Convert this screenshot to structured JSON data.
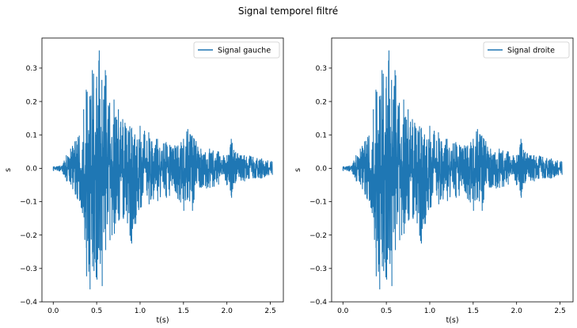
{
  "figure": {
    "suptitle": "Signal temporel filtré"
  },
  "chart_data": [
    {
      "type": "line",
      "xlabel": "t(s)",
      "ylabel": "s",
      "xlim": [
        -0.13,
        2.65
      ],
      "ylim": [
        -0.4,
        0.39
      ],
      "xticks": [
        0.0,
        0.5,
        1.0,
        1.5,
        2.0,
        2.5
      ],
      "xtick_labels": [
        "0.0",
        "0.5",
        "1.0",
        "1.5",
        "2.0",
        "2.5"
      ],
      "yticks": [
        -0.4,
        -0.3,
        -0.2,
        -0.1,
        0.0,
        0.1,
        0.2,
        0.3
      ],
      "ytick_labels": [
        "−0.4",
        "−0.3",
        "−0.2",
        "−0.1",
        "0.0",
        "0.1",
        "0.2",
        "0.3"
      ],
      "legend": {
        "position": "upper right"
      },
      "series": [
        {
          "name": "Signal gauche",
          "color": "#1f77b4",
          "envelope": {
            "t": [
              0.0,
              0.1,
              0.15,
              0.2,
              0.25,
              0.3,
              0.35,
              0.38,
              0.42,
              0.45,
              0.5,
              0.53,
              0.56,
              0.6,
              0.65,
              0.7,
              0.75,
              0.8,
              0.9,
              1.0,
              1.1,
              1.2,
              1.3,
              1.4,
              1.5,
              1.55,
              1.6,
              1.7,
              1.8,
              1.9,
              2.0,
              2.05,
              2.1,
              2.2,
              2.3,
              2.4,
              2.52
            ],
            "upper": [
              0.005,
              0.008,
              0.04,
              0.06,
              0.08,
              0.1,
              0.18,
              0.24,
              0.22,
              0.3,
              0.28,
              0.36,
              0.27,
              0.3,
              0.2,
              0.21,
              0.18,
              0.15,
              0.12,
              0.13,
              0.11,
              0.09,
              0.08,
              0.07,
              0.09,
              0.12,
              0.1,
              0.06,
              0.06,
              0.05,
              0.04,
              0.09,
              0.05,
              0.04,
              0.035,
              0.03,
              0.02
            ],
            "lower": [
              -0.008,
              -0.01,
              -0.04,
              -0.05,
              -0.08,
              -0.1,
              -0.15,
              -0.33,
              -0.37,
              -0.3,
              -0.34,
              -0.25,
              -0.36,
              -0.25,
              -0.22,
              -0.2,
              -0.16,
              -0.15,
              -0.23,
              -0.12,
              -0.11,
              -0.1,
              -0.09,
              -0.07,
              -0.13,
              -0.09,
              -0.13,
              -0.06,
              -0.06,
              -0.05,
              -0.05,
              -0.09,
              -0.04,
              -0.04,
              -0.03,
              -0.03,
              -0.02
            ]
          }
        }
      ]
    },
    {
      "type": "line",
      "xlabel": "t(s)",
      "ylabel": "s",
      "xlim": [
        -0.13,
        2.65
      ],
      "ylim": [
        -0.4,
        0.39
      ],
      "xticks": [
        0.0,
        0.5,
        1.0,
        1.5,
        2.0,
        2.5
      ],
      "xtick_labels": [
        "0.0",
        "0.5",
        "1.0",
        "1.5",
        "2.0",
        "2.5"
      ],
      "yticks": [
        -0.4,
        -0.3,
        -0.2,
        -0.1,
        0.0,
        0.1,
        0.2,
        0.3
      ],
      "ytick_labels": [
        "−0.4",
        "−0.3",
        "−0.2",
        "−0.1",
        "0.0",
        "0.1",
        "0.2",
        "0.3"
      ],
      "legend": {
        "position": "upper right"
      },
      "series": [
        {
          "name": "Signal droite",
          "color": "#1f77b4",
          "envelope": {
            "t": [
              0.0,
              0.1,
              0.15,
              0.2,
              0.25,
              0.3,
              0.35,
              0.38,
              0.42,
              0.45,
              0.5,
              0.53,
              0.56,
              0.6,
              0.65,
              0.7,
              0.75,
              0.8,
              0.9,
              1.0,
              1.1,
              1.2,
              1.3,
              1.4,
              1.5,
              1.55,
              1.6,
              1.7,
              1.8,
              1.9,
              2.0,
              2.05,
              2.1,
              2.2,
              2.3,
              2.4,
              2.52
            ],
            "upper": [
              0.005,
              0.008,
              0.04,
              0.06,
              0.08,
              0.1,
              0.18,
              0.24,
              0.22,
              0.3,
              0.28,
              0.36,
              0.27,
              0.3,
              0.2,
              0.21,
              0.18,
              0.15,
              0.12,
              0.13,
              0.11,
              0.09,
              0.08,
              0.07,
              0.09,
              0.12,
              0.1,
              0.06,
              0.06,
              0.05,
              0.04,
              0.09,
              0.05,
              0.04,
              0.035,
              0.03,
              0.02
            ],
            "lower": [
              -0.008,
              -0.01,
              -0.04,
              -0.05,
              -0.08,
              -0.1,
              -0.15,
              -0.33,
              -0.37,
              -0.3,
              -0.34,
              -0.25,
              -0.36,
              -0.25,
              -0.22,
              -0.2,
              -0.16,
              -0.15,
              -0.23,
              -0.12,
              -0.11,
              -0.1,
              -0.09,
              -0.07,
              -0.13,
              -0.09,
              -0.13,
              -0.06,
              -0.06,
              -0.05,
              -0.05,
              -0.09,
              -0.04,
              -0.04,
              -0.03,
              -0.03,
              -0.02
            ]
          }
        }
      ]
    }
  ]
}
